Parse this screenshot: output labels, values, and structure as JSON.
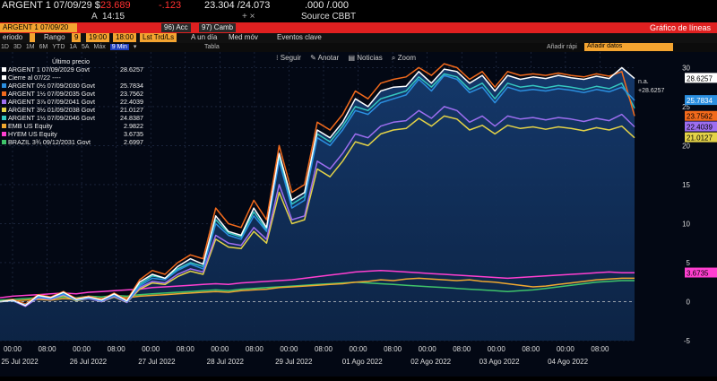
{
  "header": {
    "ticker": "ARGENT 1 07/09/29 $",
    "price": "23.689",
    "change": "-.123",
    "bid_ask": "23.304 /24.073",
    "yield": ".000 /.000",
    "sub_left": "A",
    "time": "14:15",
    "sep": "+ ×",
    "source": "Source CBBT"
  },
  "toolbar": {
    "security": "ARGENT 1 07/09/20",
    "action1": "96) Acc",
    "action2": "97) Camb",
    "chart_title": "Gráfico de líneas",
    "periodo": "eriodo",
    "rango_label": "Rango",
    "rango_value": "9",
    "time1": "19:00",
    "time2": "18:00",
    "last_label": "Lst Trd/Ls",
    "un_dia": "A un día",
    "med_mov": "Med móv",
    "eventos": "Eventos clave",
    "intervals": [
      "1D",
      "3D",
      "1M",
      "6M",
      "YTD",
      "1A",
      "5A",
      "Máx",
      "9 Min",
      "▾"
    ],
    "tabla": "Tabla",
    "anadir": "Añadir rápi",
    "anadir_dato": "Añadir datos"
  },
  "chart_controls": {
    "seguir": "Seguir",
    "anotar": "Anotar",
    "noticias": "Noticias",
    "zoom": "Zoom"
  },
  "legend": {
    "header": "Último precio",
    "items": [
      {
        "label": "ARGENT 1 07/09/2029 Govt",
        "value": "28.6257",
        "color": "#ffffff"
      },
      {
        "label": "Cierre al 07/22 ----",
        "value": "",
        "color": "#ffffff"
      },
      {
        "label": "ARGENT 0½ 07/09/2030 Govt",
        "value": "25.7834",
        "color": "#2b8fe0"
      },
      {
        "label": "ARGENT 1½ 07/09/2035 Govt",
        "value": "23.7562",
        "color": "#f26a1c"
      },
      {
        "label": "ARGENT 3⅞ 07/09/2041 Govt",
        "value": "22.4039",
        "color": "#9d6ef0"
      },
      {
        "label": "ARGENT 3½ 01/09/2038 Govt",
        "value": "21.0127",
        "color": "#e3d247"
      },
      {
        "label": "ARGENT 1½ 07/09/2046 Govt",
        "value": "24.8387",
        "color": "#34c6c0"
      },
      {
        "label": "EMB US Equity",
        "value": "2.9822",
        "color": "#f0a830"
      },
      {
        "label": "HYEM US Equity",
        "value": "3.6735",
        "color": "#ff3fd0"
      },
      {
        "label": "BRAZIL 3¾ 09/12/2031 Govt",
        "value": "2.6997",
        "color": "#3fc46a"
      }
    ]
  },
  "chart_data": {
    "type": "line",
    "ylim": [
      -5,
      32
    ],
    "yticks": [
      -5,
      0,
      5,
      10,
      15,
      20,
      25,
      30
    ],
    "x_time_labels": [
      "00:00",
      "08:00",
      "00:00",
      "08:00",
      "00:00",
      "08:00",
      "00:00",
      "08:00",
      "00:00",
      "08:00",
      "00:00",
      "08:00",
      "00:00",
      "08:00",
      "00:00",
      "08:00",
      "00:00",
      "08:00"
    ],
    "x_date_labels": [
      "25 Jul 2022",
      "26 Jul 2022",
      "27 Jul 2022",
      "28 Jul 2022",
      "29 Jul 2022",
      "01 Ago 2022",
      "02 Ago 2022",
      "03 Ago 2022",
      "04 Ago 2022"
    ],
    "annotations": [
      "n.a.",
      "+28.6257"
    ],
    "x": [
      0,
      4,
      8,
      12,
      16,
      20,
      24,
      28,
      32,
      36,
      40,
      44,
      48,
      52,
      56,
      60,
      64,
      68,
      72,
      76,
      80,
      84,
      88,
      92,
      96,
      100,
      104,
      108,
      112,
      116,
      120,
      124,
      128,
      132,
      136,
      140,
      144,
      148,
      152,
      156,
      160,
      164,
      168,
      172,
      176,
      180,
      184,
      188,
      192,
      196,
      200
    ],
    "series": [
      {
        "name": "ARGENT 1 07/09/2029 Govt",
        "color": "#ffffff",
        "values": [
          0,
          0.2,
          -0.5,
          0.8,
          0.5,
          1.2,
          0.3,
          0.6,
          0.2,
          1.0,
          0.1,
          2.5,
          3.5,
          3.0,
          4.5,
          5.5,
          4.8,
          11.0,
          9.0,
          8.5,
          12.0,
          9.5,
          19,
          13,
          14,
          22,
          21,
          23,
          26,
          25,
          27,
          27.5,
          27.6,
          29.5,
          28.0,
          29.8,
          29.5,
          28.0,
          29.0,
          27.0,
          29.0,
          28.5,
          28.8,
          28.6,
          29.0,
          28.7,
          28.5,
          28.9,
          28.6,
          30.0,
          28.6
        ]
      },
      {
        "name": "ARGENT 0½ 07/09/2030 Govt",
        "color": "#2b8fe0",
        "values": [
          0,
          0.1,
          -0.4,
          0.6,
          0.4,
          1.0,
          0.2,
          0.5,
          0.1,
          0.8,
          0.0,
          2.0,
          3.0,
          2.8,
          4.0,
          4.8,
          4.2,
          10.0,
          8.5,
          8.0,
          11.0,
          9.0,
          18,
          12,
          13,
          21,
          20,
          22,
          24.5,
          24,
          25.5,
          26,
          26.5,
          28.5,
          27.0,
          29.0,
          28.5,
          26.8,
          27.5,
          25.5,
          27.5,
          27.0,
          27.2,
          27.0,
          27.3,
          27.1,
          26.8,
          27.2,
          26.9,
          27.5,
          25.8
        ]
      },
      {
        "name": "ARGENT 1½ 07/09/2035 Govt",
        "color": "#f26a1c",
        "values": [
          0,
          0.3,
          -0.3,
          0.9,
          0.6,
          1.3,
          0.4,
          0.7,
          0.3,
          1.1,
          0.2,
          2.8,
          4.0,
          3.5,
          5.0,
          6.0,
          5.5,
          12.0,
          10.0,
          9.5,
          13.0,
          10.5,
          20,
          14,
          15,
          23,
          22,
          24,
          27,
          26,
          28,
          28.5,
          28.8,
          30.0,
          29.0,
          30.5,
          30.0,
          28.5,
          29.5,
          27.5,
          29.5,
          29.0,
          29.2,
          29.0,
          29.3,
          29.0,
          28.8,
          29.2,
          28.9,
          29.5,
          23.8
        ]
      },
      {
        "name": "ARGENT 3⅞ 07/09/2041 Govt",
        "color": "#9d6ef0",
        "values": [
          0,
          0.1,
          -0.6,
          0.5,
          0.3,
          0.9,
          0.2,
          0.4,
          0.0,
          0.7,
          -0.1,
          1.8,
          2.6,
          2.4,
          3.5,
          4.2,
          3.8,
          8.5,
          7.5,
          7.2,
          9.5,
          8.0,
          15,
          10.5,
          11,
          18,
          17,
          19,
          21.5,
          21,
          22.5,
          23,
          23.2,
          24.5,
          23.5,
          25.0,
          24.5,
          23.0,
          23.8,
          22.5,
          23.8,
          23.4,
          23.6,
          23.3,
          23.6,
          23.4,
          23.1,
          23.5,
          23.2,
          24.0,
          22.4
        ]
      },
      {
        "name": "ARGENT 3½ 01/09/2038 Govt",
        "color": "#e3d247",
        "values": [
          0,
          0.1,
          -0.5,
          0.5,
          0.3,
          0.8,
          0.1,
          0.4,
          0.0,
          0.6,
          -0.1,
          1.6,
          2.4,
          2.2,
          3.2,
          3.9,
          3.5,
          8.0,
          7.0,
          6.8,
          9.0,
          7.5,
          14,
          10,
          10.5,
          17,
          16,
          18,
          20.5,
          20,
          21.5,
          22,
          22.2,
          23.5,
          22.5,
          23.8,
          23.4,
          22.0,
          22.6,
          21.5,
          22.6,
          22.2,
          22.4,
          22.1,
          22.4,
          22.2,
          21.9,
          22.3,
          22.0,
          22.5,
          21.0
        ]
      },
      {
        "name": "ARGENT 1½ 07/09/2046 Govt",
        "color": "#34c6c0",
        "values": [
          0,
          0.2,
          -0.4,
          0.7,
          0.5,
          1.1,
          0.3,
          0.6,
          0.2,
          0.9,
          0.1,
          2.2,
          3.3,
          3.0,
          4.2,
          5.0,
          4.5,
          10.5,
          8.8,
          8.3,
          11.5,
          9.2,
          18.5,
          12.5,
          13.5,
          21.5,
          20.5,
          22.5,
          25,
          24.5,
          26,
          26.5,
          27,
          28.8,
          27.5,
          29.2,
          28.8,
          27.2,
          28.0,
          26.0,
          28.0,
          27.5,
          27.7,
          27.4,
          27.7,
          27.5,
          27.2,
          27.6,
          27.3,
          28.0,
          24.8
        ]
      },
      {
        "name": "EMB US Equity",
        "color": "#f0a830",
        "values": [
          0,
          0.1,
          0.2,
          0.3,
          0.2,
          0.4,
          0.3,
          0.5,
          0.4,
          0.6,
          0.5,
          0.7,
          0.8,
          0.9,
          1.0,
          1.1,
          1.2,
          1.3,
          1.2,
          1.4,
          1.5,
          1.6,
          1.8,
          1.9,
          2.0,
          2.1,
          2.2,
          2.3,
          2.5,
          2.6,
          2.8,
          2.7,
          2.9,
          3.0,
          2.9,
          2.8,
          2.7,
          2.8,
          2.6,
          2.5,
          2.3,
          2.1,
          1.9,
          2.0,
          2.2,
          2.4,
          2.6,
          2.8,
          2.9,
          3.0,
          3.0
        ]
      },
      {
        "name": "HYEM US Equity",
        "color": "#ff3fd0",
        "values": [
          0.5,
          0.7,
          0.8,
          0.9,
          1.0,
          1.1,
          1.0,
          1.2,
          1.3,
          1.4,
          1.5,
          1.6,
          1.8,
          1.9,
          2.0,
          2.1,
          2.2,
          2.3,
          2.2,
          2.4,
          2.5,
          2.6,
          2.7,
          2.8,
          3.0,
          3.2,
          3.4,
          3.6,
          3.8,
          3.9,
          4.0,
          3.9,
          3.8,
          3.7,
          3.6,
          3.5,
          3.4,
          3.3,
          3.2,
          3.1,
          3.0,
          3.1,
          3.2,
          3.3,
          3.4,
          3.5,
          3.6,
          3.7,
          3.8,
          3.7,
          3.7
        ]
      },
      {
        "name": "BRAZIL 3¾ 09/12/2031 Govt",
        "color": "#3fc46a",
        "values": [
          0.2,
          0.3,
          0.4,
          0.5,
          0.4,
          0.6,
          0.5,
          0.7,
          0.6,
          0.8,
          0.7,
          0.9,
          1.0,
          1.1,
          1.2,
          1.3,
          1.4,
          1.5,
          1.4,
          1.6,
          1.7,
          1.8,
          1.9,
          2.0,
          2.1,
          2.2,
          2.3,
          2.4,
          2.5,
          2.4,
          2.3,
          2.2,
          2.1,
          2.0,
          1.9,
          1.8,
          1.7,
          1.6,
          1.5,
          1.4,
          1.3,
          1.4,
          1.5,
          1.7,
          1.9,
          2.1,
          2.3,
          2.5,
          2.6,
          2.7,
          2.7
        ]
      }
    ],
    "right_tags": [
      {
        "value": "28.6257",
        "bg": "#ffffff",
        "fg": "#000000",
        "y": 28.6257
      },
      {
        "value": "25.7834",
        "bg": "#2b8fe0",
        "fg": "#ffffff",
        "y": 25.7834
      },
      {
        "value": "23.7562",
        "bg": "#f26a1c",
        "fg": "#000000",
        "y": 23.7562
      },
      {
        "value": "22.4039",
        "bg": "#9d6ef0",
        "fg": "#000000",
        "y": 22.4039
      },
      {
        "value": "21.0127",
        "bg": "#e3d247",
        "fg": "#000000",
        "y": 21.0127
      },
      {
        "value": "3.6735",
        "bg": "#ff3fd0",
        "fg": "#000000",
        "y": 3.6735
      }
    ]
  }
}
